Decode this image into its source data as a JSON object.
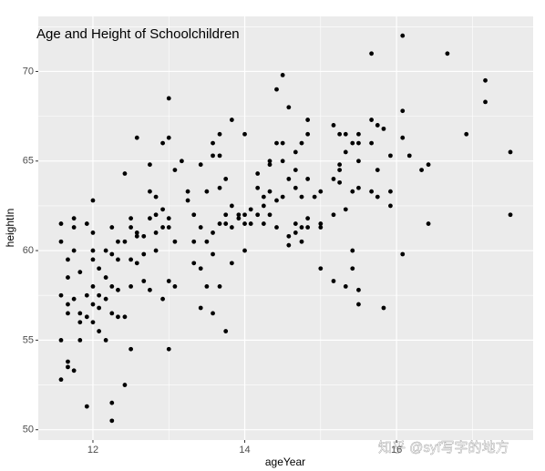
{
  "chart_data": {
    "type": "scatter",
    "title": "Age and Height of Schoolchildren",
    "x_label": "ageYear",
    "y_label": "heightIn",
    "watermark": "知乎 @syf写字的地方",
    "color": "#000000",
    "grid": true,
    "xlim": [
      11.28,
      17.8
    ],
    "ylim": [
      49.425,
      73.075
    ],
    "xticks": [
      12,
      14,
      16
    ],
    "yticks": [
      50,
      55,
      60,
      65,
      70
    ],
    "x": [
      11.58,
      11.58,
      11.58,
      11.58,
      11.58,
      11.67,
      11.67,
      11.67,
      11.67,
      11.67,
      11.67,
      11.75,
      11.75,
      11.75,
      11.75,
      11.75,
      11.83,
      11.83,
      11.83,
      11.83,
      11.92,
      11.92,
      11.92,
      11.92,
      12.0,
      12.0,
      12.0,
      12.0,
      12.0,
      12.0,
      12.0,
      12.08,
      12.08,
      12.08,
      12.08,
      12.17,
      12.17,
      12.17,
      12.17,
      12.25,
      12.25,
      12.25,
      12.25,
      12.25,
      12.25,
      12.33,
      12.33,
      12.33,
      12.33,
      12.42,
      12.42,
      12.42,
      12.42,
      12.5,
      12.5,
      12.5,
      12.5,
      12.5,
      12.58,
      12.58,
      12.58,
      12.58,
      12.67,
      12.67,
      12.67,
      12.75,
      12.75,
      12.75,
      12.75,
      12.83,
      12.83,
      12.83,
      12.83,
      12.92,
      12.92,
      12.92,
      12.92,
      13.0,
      13.0,
      13.0,
      13.0,
      13.0,
      13.0,
      13.08,
      13.08,
      13.08,
      13.17,
      13.25,
      13.25,
      13.33,
      13.33,
      13.33,
      13.42,
      13.42,
      13.42,
      13.42,
      13.5,
      13.5,
      13.5,
      13.58,
      13.58,
      13.58,
      13.58,
      13.58,
      13.67,
      13.67,
      13.67,
      13.67,
      13.67,
      13.75,
      13.75,
      13.75,
      13.75,
      13.83,
      13.83,
      13.83,
      13.83,
      13.92,
      13.92,
      14.0,
      14.0,
      14.0,
      14.0,
      14.08,
      14.08,
      14.17,
      14.17,
      14.17,
      14.25,
      14.25,
      14.25,
      14.33,
      14.33,
      14.33,
      14.33,
      14.42,
      14.42,
      14.42,
      14.42,
      14.5,
      14.5,
      14.5,
      14.5,
      14.58,
      14.58,
      14.58,
      14.58,
      14.67,
      14.67,
      14.67,
      14.67,
      14.67,
      14.75,
      14.75,
      14.75,
      14.75,
      14.83,
      14.83,
      14.83,
      14.83,
      14.83,
      14.92,
      15.0,
      15.0,
      15.0,
      15.0,
      15.17,
      15.17,
      15.17,
      15.17,
      15.25,
      15.25,
      15.25,
      15.25,
      15.33,
      15.33,
      15.33,
      15.33,
      15.42,
      15.42,
      15.42,
      15.42,
      15.5,
      15.5,
      15.5,
      15.5,
      15.5,
      15.5,
      15.67,
      15.67,
      15.67,
      15.67,
      15.75,
      15.75,
      15.75,
      15.83,
      15.83,
      15.92,
      15.92,
      15.92,
      16.08,
      16.08,
      16.08,
      16.08,
      16.17,
      16.33,
      16.42,
      16.42,
      16.67,
      16.92,
      17.17,
      17.17,
      17.5,
      17.5
    ],
    "y": [
      61.5,
      60.5,
      57.5,
      55.0,
      52.8,
      59.5,
      58.5,
      57.0,
      56.5,
      53.8,
      53.5,
      61.8,
      61.3,
      60.0,
      57.3,
      53.3,
      58.8,
      56.5,
      56.0,
      55.0,
      61.5,
      57.5,
      56.3,
      51.3,
      62.8,
      61.0,
      60.0,
      59.5,
      58.0,
      57.0,
      56.0,
      59.0,
      57.5,
      56.8,
      55.5,
      60.0,
      58.5,
      57.3,
      55.0,
      61.3,
      59.8,
      58.0,
      56.5,
      51.5,
      50.5,
      60.5,
      59.5,
      57.8,
      56.3,
      64.3,
      60.5,
      56.3,
      52.5,
      61.8,
      61.3,
      59.5,
      58.0,
      54.5,
      66.3,
      61.0,
      59.3,
      60.8,
      60.8,
      59.8,
      58.3,
      64.8,
      63.3,
      61.8,
      57.8,
      63.0,
      62.0,
      61.0,
      60.0,
      66.0,
      62.3,
      61.3,
      57.3,
      68.5,
      66.3,
      61.8,
      61.3,
      58.3,
      54.5,
      64.5,
      60.5,
      58.0,
      65.0,
      63.3,
      62.8,
      62.0,
      60.5,
      59.3,
      64.8,
      61.3,
      59.0,
      56.8,
      63.3,
      60.5,
      58.0,
      66.0,
      65.3,
      61.0,
      59.8,
      56.5,
      66.5,
      65.3,
      63.5,
      61.5,
      58.0,
      64.0,
      62.0,
      61.5,
      55.5,
      67.3,
      62.5,
      61.3,
      59.3,
      62.0,
      61.8,
      66.5,
      62.0,
      61.5,
      60.0,
      62.3,
      61.5,
      64.3,
      63.5,
      62.0,
      63.0,
      62.5,
      61.5,
      65.0,
      64.8,
      63.3,
      62.0,
      69.0,
      66.0,
      62.8,
      61.3,
      69.8,
      66.0,
      65.0,
      63.0,
      68.0,
      64.0,
      60.8,
      60.3,
      65.5,
      64.5,
      63.5,
      61.5,
      61.0,
      66.0,
      63.0,
      61.3,
      60.5,
      67.3,
      66.5,
      64.0,
      61.8,
      61.3,
      63.0,
      63.3,
      61.5,
      61.3,
      59.0,
      67.0,
      64.0,
      62.0,
      58.3,
      66.5,
      64.8,
      64.5,
      63.8,
      66.5,
      65.5,
      62.3,
      58.0,
      66.0,
      63.3,
      60.0,
      59.0,
      66.5,
      66.0,
      65.0,
      63.5,
      57.8,
      57.0,
      71.0,
      67.3,
      66.0,
      63.3,
      67.0,
      64.5,
      63.0,
      66.8,
      56.8,
      65.3,
      63.3,
      62.5,
      72.0,
      67.8,
      66.3,
      59.8,
      65.3,
      64.5,
      64.8,
      61.5,
      71.0,
      66.5,
      69.5,
      68.3,
      65.5,
      62.0
    ]
  }
}
